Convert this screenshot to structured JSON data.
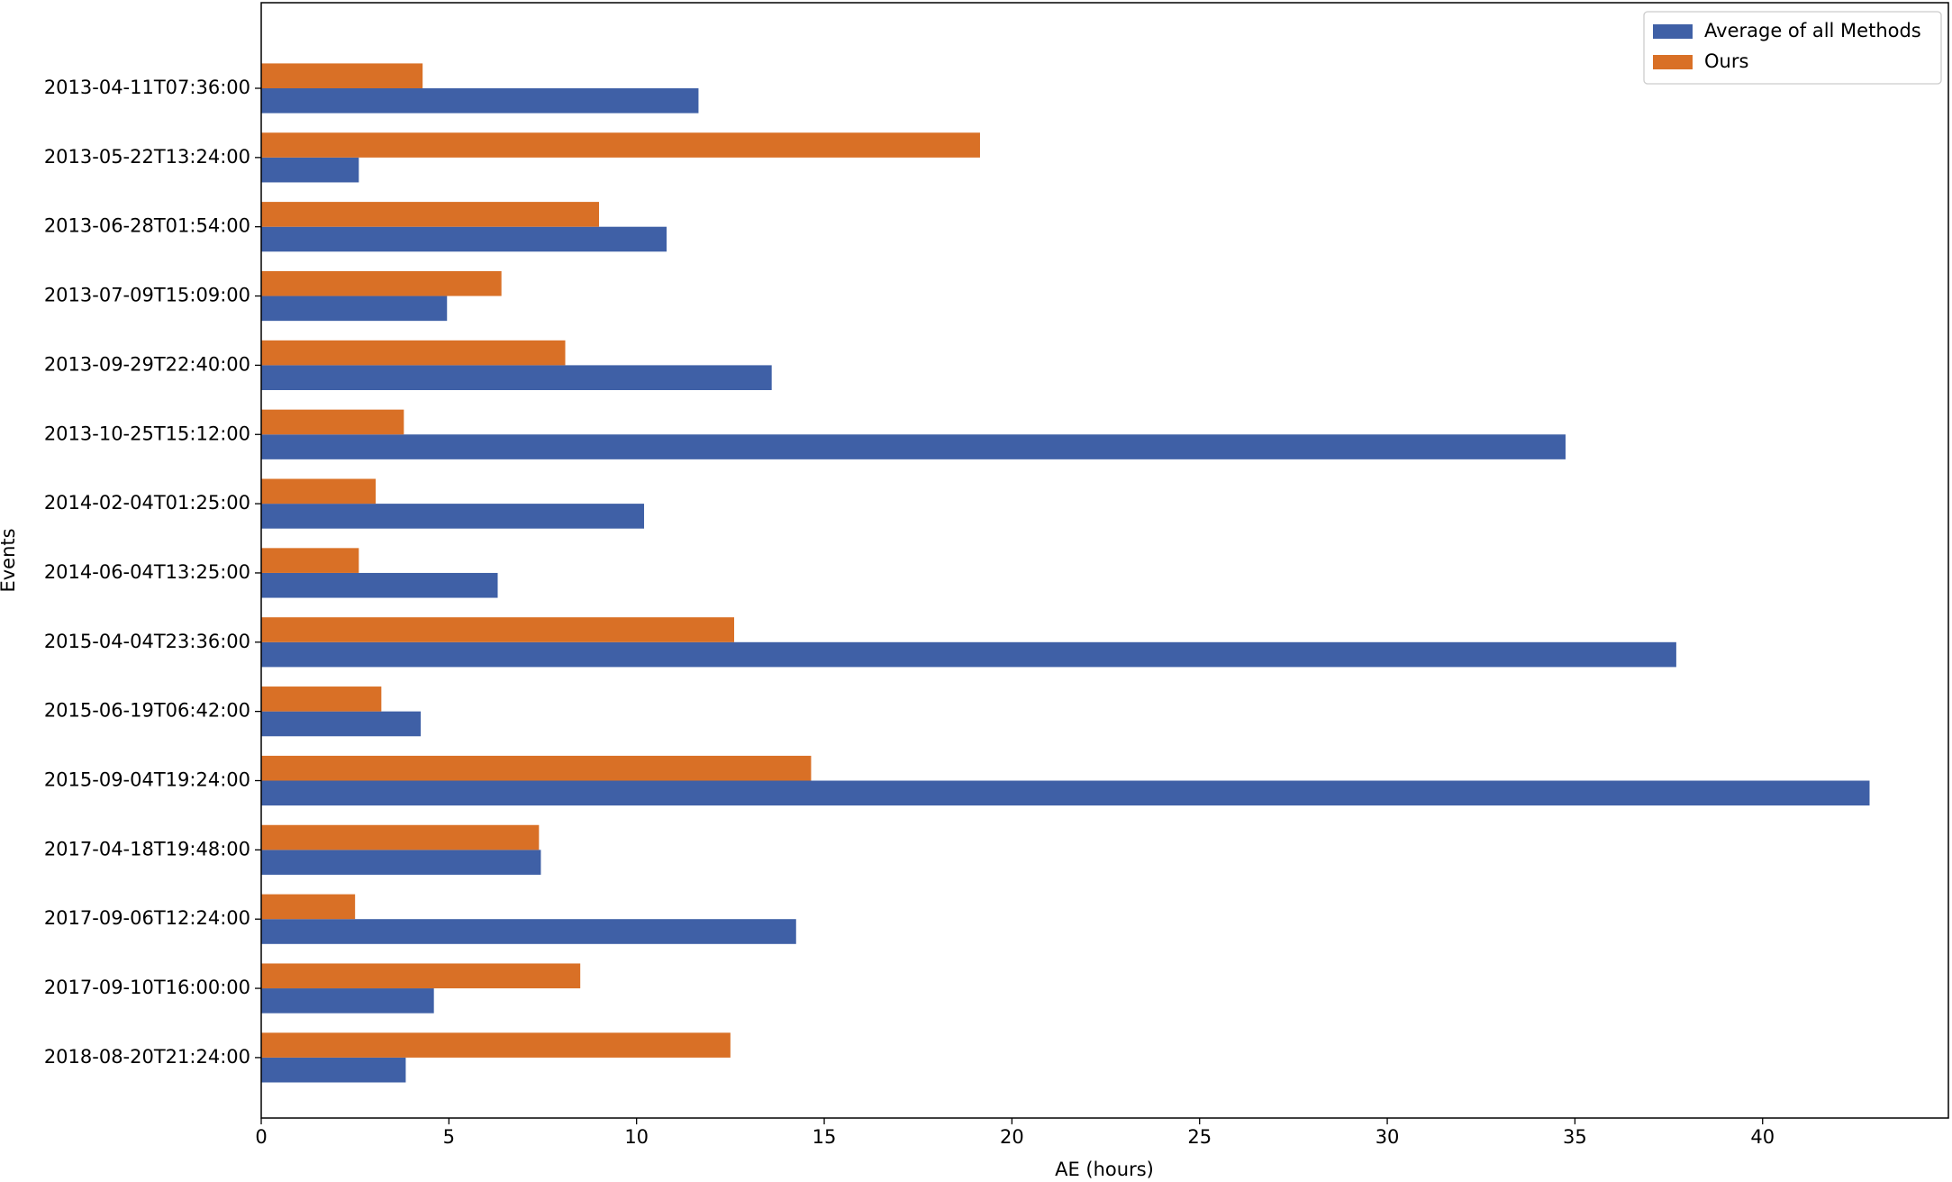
{
  "chart_data": {
    "type": "barh",
    "xlabel": "AE (hours)",
    "ylabel": "Events",
    "categories": [
      "2013-04-11T07:36:00",
      "2013-05-22T13:24:00",
      "2013-06-28T01:54:00",
      "2013-07-09T15:09:00",
      "2013-09-29T22:40:00",
      "2013-10-25T15:12:00",
      "2014-02-04T01:25:00",
      "2014-06-04T13:25:00",
      "2015-04-04T23:36:00",
      "2015-06-19T06:42:00",
      "2015-09-04T19:24:00",
      "2017-04-18T19:48:00",
      "2017-09-06T12:24:00",
      "2017-09-10T16:00:00",
      "2018-08-20T21:24:00"
    ],
    "series": [
      {
        "name": "Average of all Methods",
        "color": "#3f60a6",
        "values": [
          11.65,
          2.6,
          10.8,
          4.95,
          13.6,
          34.75,
          10.2,
          6.3,
          37.7,
          4.25,
          42.85,
          7.45,
          14.25,
          4.6,
          3.85
        ]
      },
      {
        "name": "Ours",
        "color": "#d97026",
        "values": [
          4.3,
          19.15,
          9.0,
          6.4,
          8.1,
          3.8,
          3.05,
          2.6,
          12.6,
          3.2,
          14.65,
          7.4,
          2.5,
          8.5,
          12.5
        ]
      }
    ],
    "xlim": [
      0,
      44.95
    ],
    "xticks": [
      0,
      5,
      10,
      15,
      20,
      25,
      30,
      35,
      40
    ],
    "legend": "upper right"
  }
}
